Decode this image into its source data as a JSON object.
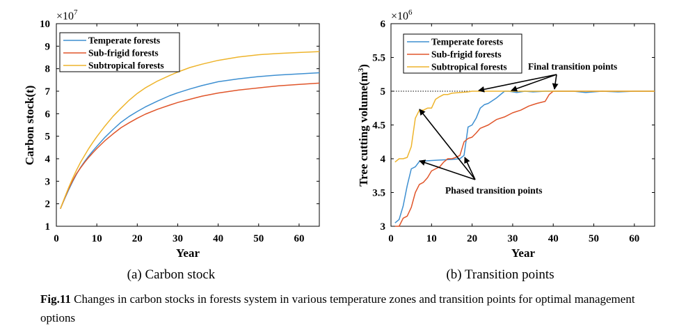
{
  "colors": {
    "temperate": "#3d8fd1",
    "subfrigid": "#e0552a",
    "subtropical": "#eeb42b"
  },
  "chart_data": [
    {
      "type": "line",
      "xlabel": "Year",
      "ylabel": "Carbon stock(t)",
      "exponent_label": "×10",
      "exponent_power": "7",
      "xlim": [
        0,
        65
      ],
      "ylim": [
        1,
        10
      ],
      "xticks": [
        "0",
        "10",
        "20",
        "30",
        "40",
        "50",
        "60"
      ],
      "yticks": [
        "1",
        "2",
        "3",
        "4",
        "5",
        "6",
        "7",
        "8",
        "9",
        "10"
      ],
      "legend_position": "top-left",
      "x": [
        1,
        2,
        3,
        4,
        5,
        6,
        7,
        8,
        9,
        10,
        12,
        14,
        16,
        18,
        20,
        22,
        25,
        28,
        30,
        33,
        36,
        40,
        45,
        50,
        55,
        60,
        65
      ],
      "series": [
        {
          "name": "Temperate forests",
          "color_key": "temperate",
          "values": [
            1.78,
            2.2,
            2.6,
            2.98,
            3.32,
            3.62,
            3.88,
            4.12,
            4.34,
            4.55,
            4.95,
            5.3,
            5.62,
            5.88,
            6.1,
            6.3,
            6.56,
            6.8,
            6.93,
            7.1,
            7.25,
            7.42,
            7.55,
            7.65,
            7.72,
            7.77,
            7.82
          ]
        },
        {
          "name": "Sub-frigid forests",
          "color_key": "subfrigid",
          "values": [
            1.78,
            2.22,
            2.65,
            3.02,
            3.34,
            3.6,
            3.84,
            4.06,
            4.26,
            4.45,
            4.8,
            5.1,
            5.38,
            5.6,
            5.8,
            5.98,
            6.2,
            6.38,
            6.5,
            6.64,
            6.78,
            6.92,
            7.05,
            7.15,
            7.24,
            7.3,
            7.36
          ]
        },
        {
          "name": "Subtropical forests",
          "color_key": "subtropical",
          "values": [
            1.78,
            2.25,
            2.7,
            3.12,
            3.5,
            3.85,
            4.15,
            4.45,
            4.72,
            4.98,
            5.45,
            5.88,
            6.25,
            6.6,
            6.9,
            7.15,
            7.45,
            7.7,
            7.85,
            8.05,
            8.2,
            8.37,
            8.52,
            8.62,
            8.68,
            8.72,
            8.76
          ]
        }
      ]
    },
    {
      "type": "line",
      "xlabel": "Year",
      "ylabel": "Tree cutting volume(m",
      "ylabel_sup": "3",
      "ylabel_end": ")",
      "exponent_label": "×10",
      "exponent_power": "6",
      "xlim": [
        0,
        65
      ],
      "ylim": [
        3,
        6
      ],
      "xticks": [
        "0",
        "10",
        "20",
        "30",
        "40",
        "50",
        "60"
      ],
      "yticks": [
        "3",
        "3.5",
        "4",
        "4.5",
        "5",
        "5.5",
        "6"
      ],
      "legend_position": "top-left",
      "reference_line_y": 5,
      "annotations": {
        "final": "Final transition points",
        "phased": "Phased transition points"
      },
      "series": [
        {
          "name": "Temperate forests",
          "color_key": "temperate",
          "x": [
            1,
            2,
            3,
            4,
            5,
            6,
            7,
            9,
            12,
            15,
            17,
            18,
            19,
            20,
            21,
            22,
            23,
            24,
            26,
            28,
            29,
            31,
            33,
            35,
            38,
            40,
            45,
            48,
            52,
            56,
            60,
            65
          ],
          "y": [
            3.05,
            3.1,
            3.3,
            3.6,
            3.85,
            3.88,
            3.96,
            3.97,
            3.98,
            3.99,
            4.0,
            4.05,
            4.47,
            4.5,
            4.6,
            4.75,
            4.8,
            4.82,
            4.9,
            5.0,
            5.0,
            4.98,
            5.0,
            4.99,
            5.0,
            5.0,
            5.0,
            4.98,
            5.0,
            4.99,
            5.0,
            5.0
          ]
        },
        {
          "name": "Sub-frigid forests",
          "color_key": "subfrigid",
          "x": [
            1,
            2,
            3,
            4,
            5,
            6,
            7,
            8,
            9,
            10,
            11,
            12,
            13,
            14,
            15,
            16,
            17,
            18,
            19,
            20,
            21,
            22,
            24,
            26,
            28,
            30,
            32,
            34,
            36,
            38,
            39,
            40,
            45,
            50,
            55,
            60,
            65
          ],
          "y": [
            3.0,
            3.0,
            3.12,
            3.15,
            3.28,
            3.5,
            3.62,
            3.65,
            3.72,
            3.82,
            3.85,
            3.88,
            3.95,
            4.0,
            4.0,
            4.02,
            4.05,
            4.25,
            4.3,
            4.32,
            4.38,
            4.45,
            4.5,
            4.58,
            4.62,
            4.68,
            4.72,
            4.78,
            4.82,
            4.85,
            4.95,
            5.0,
            5.0,
            5.0,
            5.0,
            5.0,
            5.0
          ]
        },
        {
          "name": "Subtropical forests",
          "color_key": "subtropical",
          "x": [
            1,
            2,
            3,
            4,
            5,
            6,
            7,
            8,
            9,
            10,
            11,
            12,
            13,
            14,
            15,
            17,
            19,
            20,
            21,
            25,
            30,
            40,
            50,
            60,
            65
          ],
          "y": [
            3.95,
            4.0,
            4.0,
            4.02,
            4.18,
            4.6,
            4.72,
            4.72,
            4.75,
            4.75,
            4.88,
            4.92,
            4.95,
            4.95,
            4.97,
            4.98,
            4.99,
            5.0,
            5.0,
            5.0,
            5.0,
            5.0,
            5.0,
            5.0,
            5.0
          ]
        }
      ]
    }
  ],
  "subcaptions": {
    "a": "(a) Carbon stock",
    "b": "(b) Transition points"
  },
  "caption": {
    "label": "Fig.11",
    "text": " Changes in carbon stocks in forests system in various temperature zones and transition points for optimal management options"
  }
}
